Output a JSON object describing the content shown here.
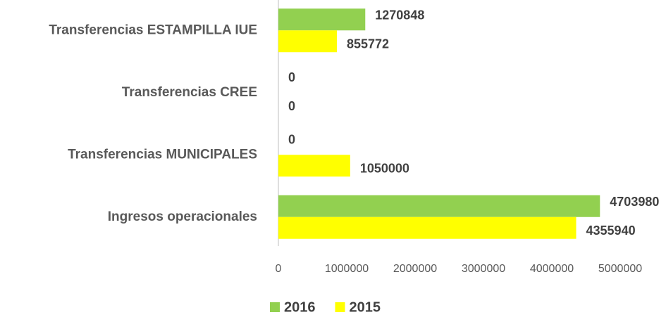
{
  "chart_data": {
    "type": "barh",
    "categories": [
      "Transferencias ESTAMPILLA IUE",
      "Transferencias CREE",
      "Transferencias MUNICIPALES",
      "Ingresos operacionales"
    ],
    "series": [
      {
        "name": "2016",
        "color": "#92d050",
        "values": [
          1270848,
          0,
          0,
          4703980
        ]
      },
      {
        "name": "2015",
        "color": "#ffff00",
        "values": [
          855772,
          0,
          1050000,
          4355940
        ]
      }
    ],
    "xlim": [
      0,
      5000000
    ],
    "xticks": [
      0,
      1000000,
      2000000,
      3000000,
      4000000,
      5000000
    ],
    "legend": "bottom"
  }
}
